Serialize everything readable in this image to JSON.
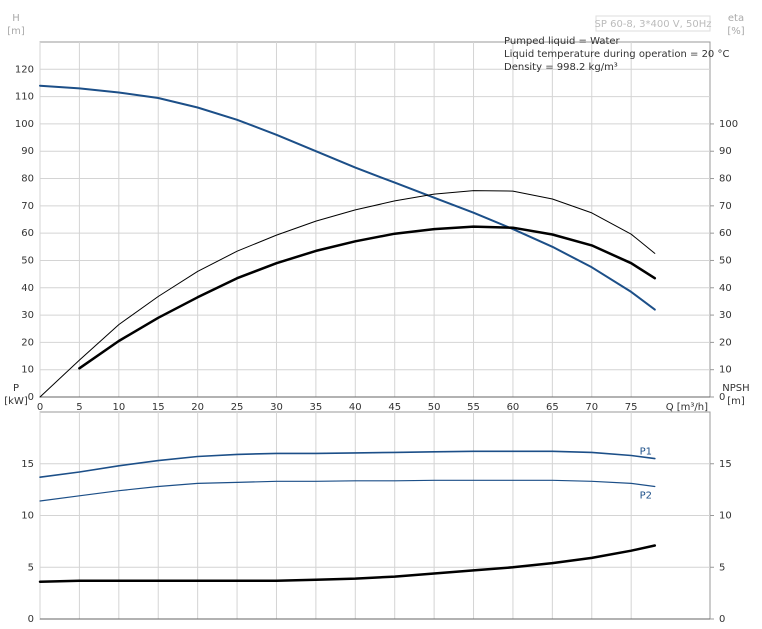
{
  "chart_data": [
    {
      "type": "line",
      "title": "SP 60-8, 3*400 V, 50Hz",
      "annotations": [
        "Pumped liquid = Water",
        "Liquid temperature during operation = 20 °C",
        "Density = 998.2 kg/m³"
      ],
      "y_label": "H",
      "y_unit": "[m]",
      "y2_label": "eta",
      "y2_unit": "[%]",
      "x_label": "Q [m³/h]",
      "x": [
        0,
        5,
        10,
        15,
        20,
        25,
        30,
        35,
        40,
        45,
        50,
        55,
        60,
        65,
        70,
        75,
        78
      ],
      "xlim": [
        0,
        85
      ],
      "xticks": [
        0,
        5,
        10,
        15,
        20,
        25,
        30,
        35,
        40,
        45,
        50,
        55,
        60,
        65,
        70,
        75
      ],
      "ylim": [
        0,
        130
      ],
      "yticks": [
        0,
        10,
        20,
        30,
        40,
        50,
        60,
        70,
        80,
        90,
        100,
        110,
        120
      ],
      "y2lim": [
        0,
        130
      ],
      "y2ticks": [
        0,
        10,
        20,
        30,
        40,
        50,
        60,
        70,
        80,
        90,
        100
      ],
      "grid": true,
      "series": [
        {
          "color": "#1c4f88",
          "values": [
            114,
            113,
            111.5,
            109.5,
            106,
            101.5,
            96,
            90,
            84,
            78.5,
            73,
            67.5,
            61.5,
            55,
            47.5,
            38.5,
            32
          ]
        },
        {
          "color": "#000000",
          "axis": "y2",
          "values": [
            0,
            13.5,
            26.5,
            36.8,
            46,
            53.4,
            59.3,
            64.4,
            68.5,
            71.8,
            74.3,
            75.6,
            75.4,
            72.5,
            67.4,
            59.6,
            52.6
          ]
        },
        {
          "color": "#000000",
          "axis": "y2",
          "values": [
            null,
            10.5,
            20.5,
            29,
            36.5,
            43.5,
            49,
            53.5,
            57,
            59.8,
            61.5,
            62.4,
            62,
            59.5,
            55.5,
            49,
            43.5
          ]
        }
      ]
    },
    {
      "type": "line",
      "y_label": "P",
      "y_unit": "[kW]",
      "y2_label": "NPSH",
      "y2_unit": "[m]",
      "x": [
        0,
        5,
        10,
        15,
        20,
        25,
        30,
        35,
        40,
        45,
        50,
        55,
        60,
        65,
        70,
        75,
        78
      ],
      "xlim": [
        0,
        85
      ],
      "xticks": [
        0,
        5,
        10,
        15,
        20,
        25,
        30,
        35,
        40,
        45,
        50,
        55,
        60,
        65,
        70,
        75
      ],
      "ylim": [
        0,
        20
      ],
      "yticks": [
        0,
        5,
        10,
        15
      ],
      "y2lim": [
        0,
        20
      ],
      "y2ticks": [
        0,
        5,
        10,
        15
      ],
      "grid": true,
      "series": [
        {
          "name": "P1",
          "color": "#1c4f88",
          "values": [
            13.7,
            14.2,
            14.8,
            15.3,
            15.7,
            15.9,
            16,
            16,
            16.05,
            16.1,
            16.15,
            16.2,
            16.2,
            16.2,
            16.1,
            15.8,
            15.5
          ]
        },
        {
          "name": "P2",
          "color": "#1c4f88",
          "values": [
            11.4,
            11.9,
            12.4,
            12.8,
            13.1,
            13.2,
            13.3,
            13.3,
            13.35,
            13.35,
            13.4,
            13.4,
            13.4,
            13.4,
            13.3,
            13.1,
            12.8
          ]
        },
        {
          "color": "#000000",
          "axis": "y2",
          "values": [
            3.6,
            3.7,
            3.7,
            3.7,
            3.7,
            3.7,
            3.7,
            3.8,
            3.9,
            4.1,
            4.4,
            4.7,
            5.0,
            5.4,
            5.9,
            6.6,
            7.1
          ]
        }
      ]
    }
  ]
}
